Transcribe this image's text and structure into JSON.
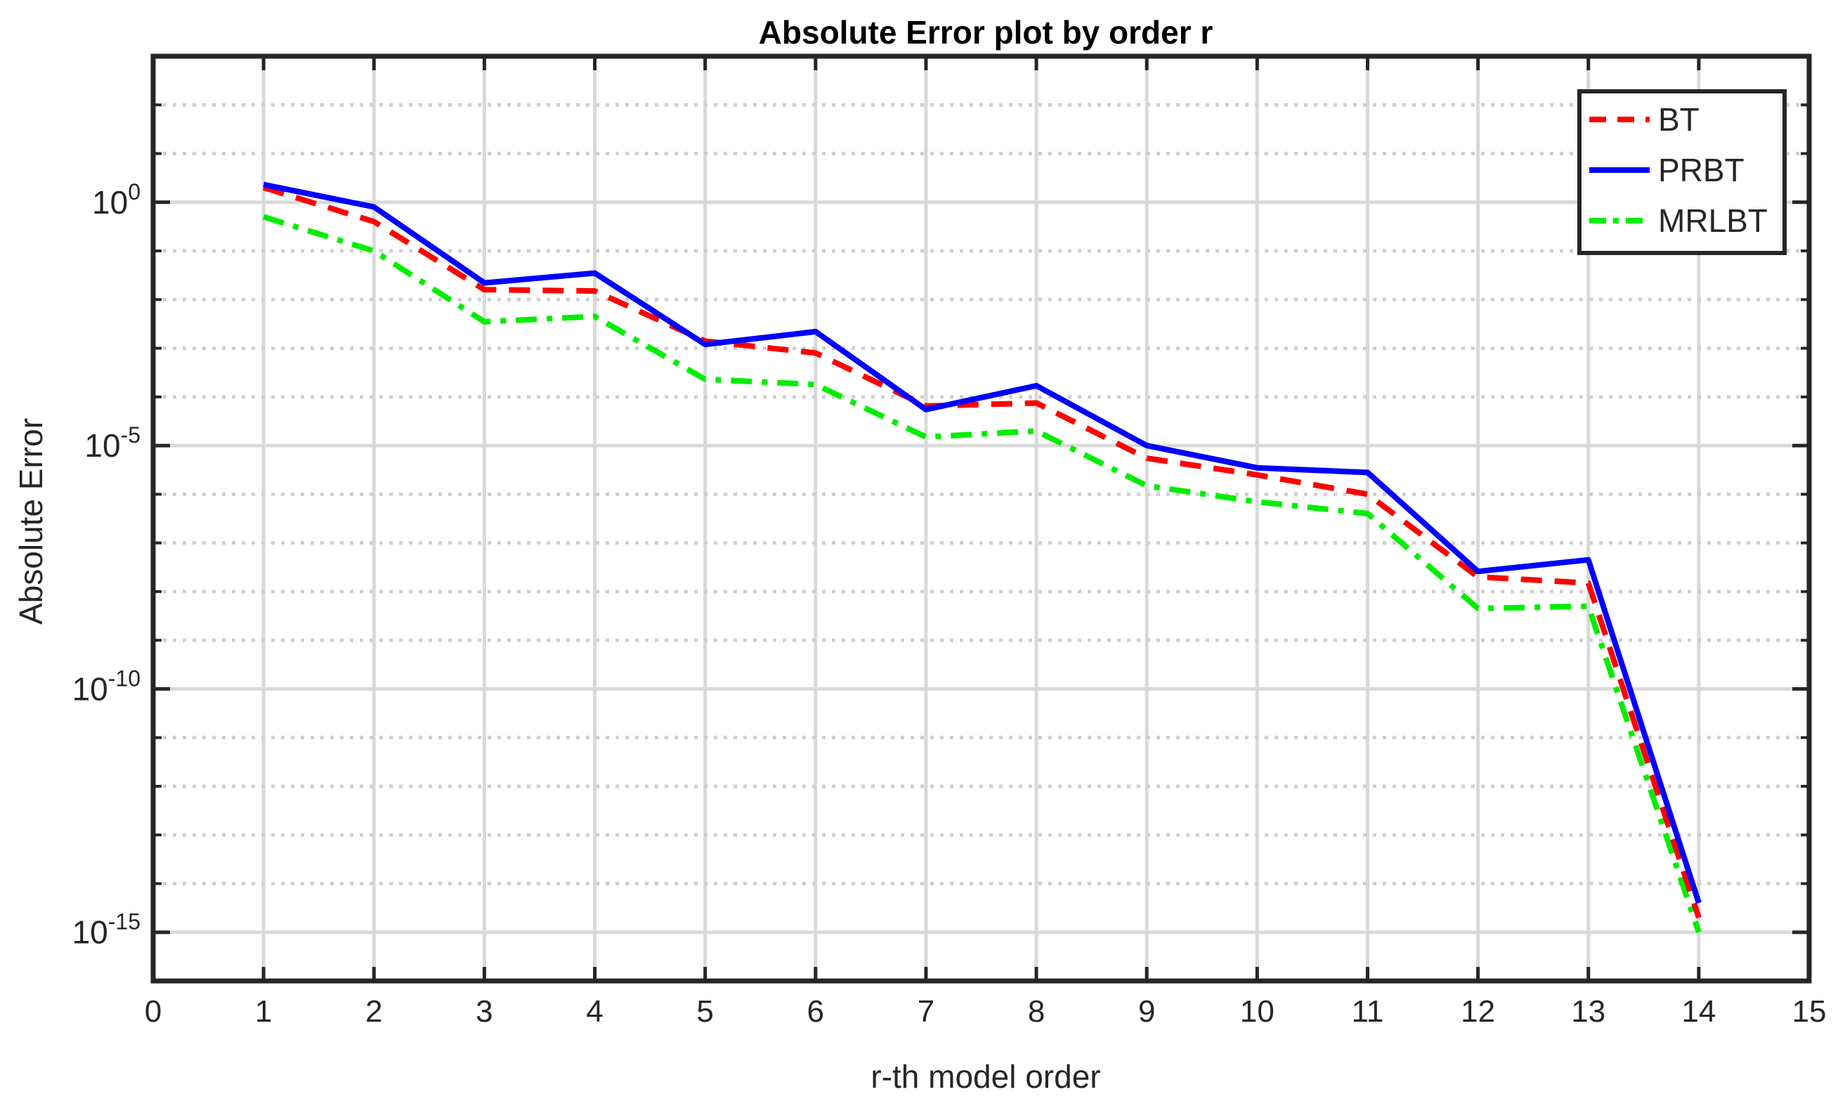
{
  "chart_data": {
    "type": "line",
    "title": "Absolute Error plot by order r",
    "xlabel": "r-th model order",
    "ylabel": "Absolute Error",
    "xlim": [
      0,
      15
    ],
    "ylim": [
      1e-16,
      1000.0
    ],
    "yscale": "log",
    "grid": true,
    "legend_position": "top-right",
    "xticks": [
      0,
      1,
      2,
      3,
      4,
      5,
      6,
      7,
      8,
      9,
      10,
      11,
      12,
      13,
      14,
      15
    ],
    "yticks": [
      {
        "exp": 0,
        "base": "10",
        "sup": "0"
      },
      {
        "exp": -5,
        "base": "10",
        "sup": "-5"
      },
      {
        "exp": -10,
        "base": "10",
        "sup": "-10"
      },
      {
        "exp": -15,
        "base": "10",
        "sup": "-15"
      }
    ],
    "x": [
      1,
      2,
      3,
      4,
      5,
      6,
      7,
      8,
      9,
      10,
      11,
      12,
      13,
      14
    ],
    "series": [
      {
        "name": "BT",
        "color": "#ff0000",
        "style": "dashed",
        "values": [
          2.0,
          0.4,
          0.016,
          0.015,
          0.0014,
          0.0008,
          6.5e-05,
          7.5e-05,
          5.5e-06,
          2.5e-06,
          1e-06,
          2e-08,
          1.5e-08,
          2e-15
        ]
      },
      {
        "name": "PRBT",
        "color": "#0000ff",
        "style": "solid",
        "values": [
          2.3,
          0.8,
          0.022,
          0.035,
          0.0012,
          0.0022,
          5.5e-05,
          0.00017,
          1e-05,
          3.5e-06,
          2.8e-06,
          2.6e-08,
          4.5e-08,
          4e-15
        ]
      },
      {
        "name": "MRLBT",
        "color": "#00ee00",
        "style": "dashdot",
        "values": [
          0.5,
          0.1,
          0.0035,
          0.0045,
          0.00023,
          0.00018,
          1.5e-05,
          2e-05,
          1.5e-06,
          7e-07,
          4e-07,
          4.5e-09,
          5e-09,
          1e-15
        ]
      }
    ]
  }
}
